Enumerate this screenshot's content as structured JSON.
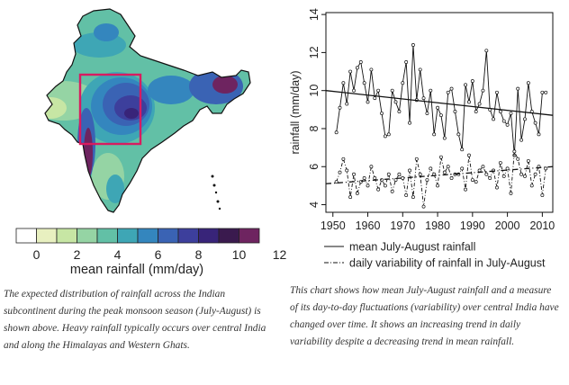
{
  "map_panel": {
    "colorbar": {
      "colors": [
        "#ffffff",
        "#e8f0c0",
        "#c7e6a4",
        "#95d4a4",
        "#62c0a6",
        "#3ea6b5",
        "#3486be",
        "#3a63b4",
        "#3d3f9c",
        "#382479",
        "#3a1a4e",
        "#6e2460"
      ],
      "tick_labels": [
        "0",
        "2",
        "4",
        "6",
        "8",
        "10",
        "12"
      ],
      "label": "mean rainfall (mm/day)"
    },
    "box_color": "#d81b60",
    "caption": "The expected distribution of rainfall across the Indian subcontinent during the peak monsoon season (July-August) is shown above. Heavy rainfall typically occurs over central India and along the Himalayas and Western Ghats."
  },
  "chart_data": {
    "type": "line",
    "xlabel": "",
    "ylabel": "rainfall (mm/day)",
    "xlim": [
      1948,
      2013
    ],
    "ylim": [
      3.6,
      14.1
    ],
    "xticks": [
      "1950",
      "1960",
      "1970",
      "1980",
      "1990",
      "2000",
      "2010"
    ],
    "yticks": [
      "4",
      "6",
      "8",
      "10",
      "12",
      "14"
    ],
    "x": [
      1951,
      1952,
      1953,
      1954,
      1955,
      1956,
      1957,
      1958,
      1959,
      1960,
      1961,
      1962,
      1963,
      1964,
      1965,
      1966,
      1967,
      1968,
      1969,
      1970,
      1971,
      1972,
      1973,
      1974,
      1975,
      1976,
      1977,
      1978,
      1979,
      1980,
      1981,
      1982,
      1983,
      1984,
      1985,
      1986,
      1987,
      1988,
      1989,
      1990,
      1991,
      1992,
      1993,
      1994,
      1995,
      1996,
      1997,
      1998,
      1999,
      2000,
      2001,
      2002,
      2003,
      2004,
      2005,
      2006,
      2007,
      2008,
      2009,
      2010,
      2011
    ],
    "series": [
      {
        "name": "mean July-August rainfall",
        "style": "solid",
        "values": [
          7.8,
          9.1,
          10.4,
          9.3,
          11.0,
          10.0,
          11.2,
          11.5,
          10.4,
          9.4,
          11.1,
          9.6,
          10.0,
          8.8,
          7.6,
          7.7,
          10.0,
          9.4,
          8.9,
          10.4,
          11.5,
          8.3,
          12.4,
          9.5,
          11.1,
          9.6,
          8.8,
          10.0,
          7.7,
          9.1,
          8.7,
          7.5,
          9.9,
          10.1,
          8.9,
          7.7,
          6.9,
          10.3,
          9.4,
          10.5,
          8.9,
          9.3,
          10.0,
          12.1,
          9.0,
          8.5,
          9.9,
          8.9,
          8.4,
          8.2,
          8.8,
          6.6,
          10.1,
          7.4,
          8.5,
          10.4,
          8.9,
          8.3,
          7.7,
          9.9,
          9.9
        ]
      },
      {
        "name": "daily variability of rainfall in July-August",
        "style": "dashdot",
        "values": [
          5.2,
          5.7,
          6.4,
          5.8,
          4.4,
          5.6,
          4.6,
          5.2,
          5.4,
          5.0,
          6.0,
          5.4,
          4.8,
          5.3,
          5.0,
          5.6,
          4.7,
          5.3,
          5.6,
          5.4,
          4.5,
          5.8,
          4.4,
          6.4,
          5.6,
          3.9,
          5.3,
          5.9,
          5.6,
          5.0,
          6.5,
          5.7,
          6.0,
          5.4,
          5.6,
          5.6,
          5.9,
          4.8,
          6.6,
          5.3,
          5.2,
          5.8,
          6.0,
          5.6,
          5.4,
          5.8,
          4.9,
          6.2,
          5.5,
          5.9,
          4.6,
          6.8,
          6.4,
          5.6,
          5.5,
          6.3,
          5.0,
          5.6,
          6.0,
          4.5,
          5.9
        ]
      }
    ],
    "trend_lines": [
      {
        "name": "mean trend",
        "from": [
          1948,
          10.0
        ],
        "to": [
          2013,
          8.7
        ]
      },
      {
        "name": "variability trend",
        "from": [
          1948,
          5.1
        ],
        "to": [
          2013,
          6.0
        ]
      }
    ],
    "legend": {
      "position": "bottom",
      "entries": [
        "mean July-August rainfall",
        "daily variability of rainfall in July-August"
      ]
    },
    "caption": "This chart shows how mean July-August rainfall and a measure of its day-to-day fluctuations (variability) over central India have changed over time. It shows an increasing trend in daily variability despite a decreasing trend in mean rainfall."
  }
}
